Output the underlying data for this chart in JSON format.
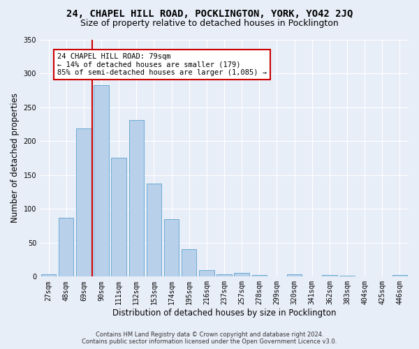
{
  "title": "24, CHAPEL HILL ROAD, POCKLINGTON, YORK, YO42 2JQ",
  "subtitle": "Size of property relative to detached houses in Pocklington",
  "xlabel": "Distribution of detached houses by size in Pocklington",
  "ylabel": "Number of detached properties",
  "bar_color": "#b8d0ea",
  "bar_edge_color": "#6aaad4",
  "bg_color": "#e8eef8",
  "fig_color": "#e8eef8",
  "grid_color": "#ffffff",
  "categories": [
    "27sqm",
    "48sqm",
    "69sqm",
    "90sqm",
    "111sqm",
    "132sqm",
    "153sqm",
    "174sqm",
    "195sqm",
    "216sqm",
    "237sqm",
    "257sqm",
    "278sqm",
    "299sqm",
    "320sqm",
    "341sqm",
    "362sqm",
    "383sqm",
    "404sqm",
    "425sqm",
    "446sqm"
  ],
  "values": [
    3,
    87,
    219,
    283,
    175,
    231,
    137,
    85,
    40,
    10,
    3,
    5,
    2,
    0,
    3,
    0,
    2,
    1,
    0,
    0,
    2
  ],
  "ylim": [
    0,
    350
  ],
  "yticks": [
    0,
    50,
    100,
    150,
    200,
    250,
    300,
    350
  ],
  "vline_x": 2.48,
  "vline_color": "#cc0000",
  "annotation_text": "24 CHAPEL HILL ROAD: 79sqm\n← 14% of detached houses are smaller (179)\n85% of semi-detached houses are larger (1,085) →",
  "annotation_box_color": "#ffffff",
  "annotation_box_edge": "#cc0000",
  "footer_line1": "Contains HM Land Registry data © Crown copyright and database right 2024.",
  "footer_line2": "Contains public sector information licensed under the Open Government Licence v3.0.",
  "title_fontsize": 10,
  "subtitle_fontsize": 9,
  "tick_fontsize": 7,
  "ylabel_fontsize": 8.5,
  "xlabel_fontsize": 8.5,
  "annotation_fontsize": 7.5,
  "footer_fontsize": 6
}
